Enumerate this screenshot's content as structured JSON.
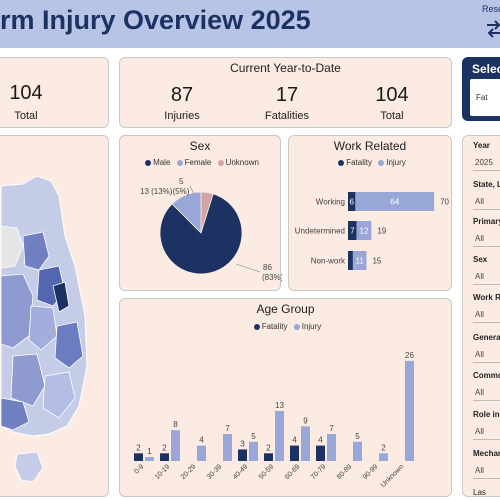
{
  "header": {
    "title": "rm Injury Overview 2025",
    "reset_label": "Rese"
  },
  "kpi_left": {
    "value": "104",
    "label": "Total"
  },
  "kpi_main": {
    "title": "Current Year-to-Date",
    "injuries": {
      "value": "87",
      "label": "Injuries"
    },
    "fatalities": {
      "value": "17",
      "label": "Fatalities"
    },
    "total": {
      "value": "104",
      "label": "Total"
    }
  },
  "select_panel": {
    "title": "Selec",
    "sub": "Fat"
  },
  "sex_chart": {
    "title": "Sex",
    "legend": [
      "Male",
      "Female",
      "Unknown"
    ],
    "label_unknown": "5",
    "label_female": "13 (13%)(5%)",
    "label_male_1": "86",
    "label_male_2": "(83%)"
  },
  "work_chart": {
    "title": "Work Related",
    "legend": [
      "Fatality",
      "Injury"
    ],
    "rows": [
      {
        "label": "Working",
        "fat": "6",
        "inj": "64",
        "total": "70"
      },
      {
        "label": "Undetermined",
        "fat": "7",
        "inj": "12",
        "total": "19"
      },
      {
        "label": "Non-work",
        "fat": "",
        "inj": "11",
        "total": "15"
      }
    ]
  },
  "filters": {
    "items": [
      {
        "label": "Year",
        "value": "2025"
      },
      {
        "label": "State, LG",
        "value": "All"
      },
      {
        "label": "Primary",
        "value": "All"
      },
      {
        "label": "Sex",
        "value": "All"
      },
      {
        "label": "Work Re",
        "value": "All"
      },
      {
        "label": "General",
        "value": "All"
      },
      {
        "label": "Commod",
        "value": "All"
      },
      {
        "label": "Role in E",
        "value": "All"
      },
      {
        "label": "Mechani",
        "value": "All"
      }
    ],
    "bottom": "Las"
  },
  "colors": {
    "fatality": "#1c3263",
    "injury": "#99a6d8",
    "unknown": "#d4a5a5"
  },
  "chart_data": [
    {
      "type": "pie",
      "title": "Sex",
      "categories": [
        "Male",
        "Female",
        "Unknown"
      ],
      "values": [
        86,
        13,
        5
      ],
      "legend": "top"
    },
    {
      "type": "bar",
      "title": "Work Related",
      "categories": [
        "Working",
        "Undetermined",
        "Non-work"
      ],
      "series": [
        {
          "name": "Fatality",
          "values": [
            6,
            7,
            4
          ]
        },
        {
          "name": "Injury",
          "values": [
            64,
            12,
            11
          ]
        }
      ],
      "totals": [
        70,
        19,
        15
      ],
      "orientation": "horizontal",
      "stacked": true,
      "legend": "top"
    },
    {
      "type": "bar",
      "title": "Age Group",
      "categories": [
        "0-9",
        "10-19",
        "20-29",
        "30-39",
        "40-49",
        "50-59",
        "60-69",
        "70-79",
        "80-89",
        "90-99",
        "Unknown"
      ],
      "series": [
        {
          "name": "Fatality",
          "values": [
            2,
            2,
            0,
            0,
            3,
            2,
            4,
            4,
            0,
            0,
            0
          ]
        },
        {
          "name": "Injury",
          "values": [
            1,
            8,
            4,
            7,
            5,
            13,
            9,
            7,
            5,
            2,
            26
          ]
        }
      ],
      "ylim": [
        0,
        28
      ],
      "legend": "top"
    }
  ]
}
